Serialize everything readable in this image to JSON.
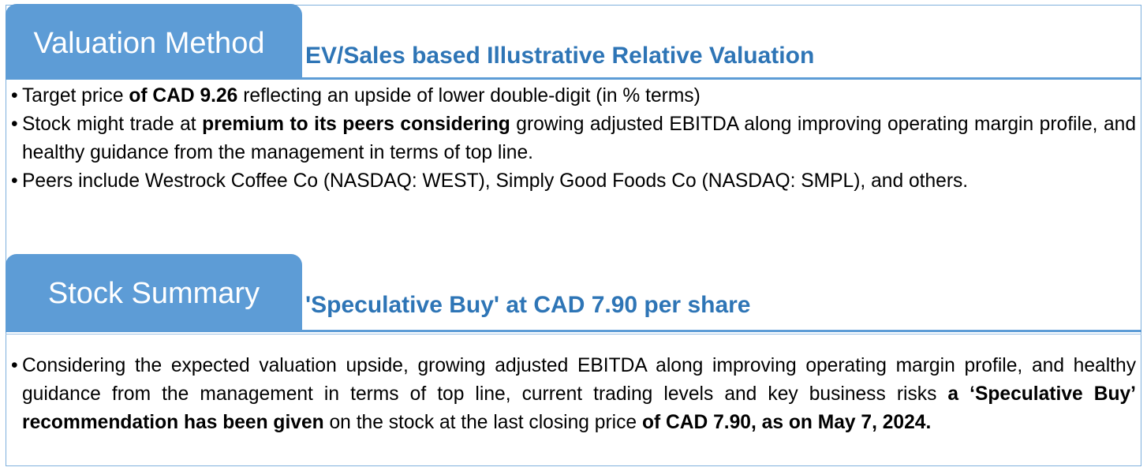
{
  "valuation": {
    "tab_label": "Valuation Method",
    "subtitle": "EV/Sales based Illustrative Relative Valuation",
    "bullet_glyph": "•",
    "bullets": [
      {
        "parts": [
          {
            "text": "Target price ",
            "bold": false
          },
          {
            "text": "of CAD 9.26",
            "bold": true
          },
          {
            "text": " reflecting an upside of lower double-digit (in % terms)",
            "bold": false
          }
        ]
      },
      {
        "parts": [
          {
            "text": "Stock might trade at ",
            "bold": false
          },
          {
            "text": "premium to its peers considering",
            "bold": true
          },
          {
            "text": " growing adjusted EBITDA along improving operating margin profile, and healthy guidance from the management in terms of top line.",
            "bold": false
          }
        ]
      },
      {
        "parts": [
          {
            "text": "Peers include Westrock Coffee Co (NASDAQ: WEST), Simply Good Foods Co (NASDAQ: SMPL), and others.",
            "bold": false
          }
        ]
      }
    ]
  },
  "summary": {
    "tab_label": "Stock Summary",
    "subtitle": "'Speculative Buy' at CAD 7.90 per share",
    "bullets": [
      {
        "parts": [
          {
            "text": "Considering the expected valuation upside, growing adjusted EBITDA along improving operating margin profile, and healthy guidance from the management in terms of top line, current trading levels and key business risks ",
            "bold": false
          },
          {
            "text": "a ‘Speculative Buy’ recommendation has been given",
            "bold": true
          },
          {
            "text": " on the stock at the last closing price ",
            "bold": false
          },
          {
            "text": "of CAD 7.90, as on May 7, 2024.",
            "bold": true
          }
        ]
      }
    ]
  },
  "colors": {
    "tab_fill": "#5d9cd6",
    "subtitle_text": "#2e75b6",
    "border": "#7fb0dd"
  }
}
